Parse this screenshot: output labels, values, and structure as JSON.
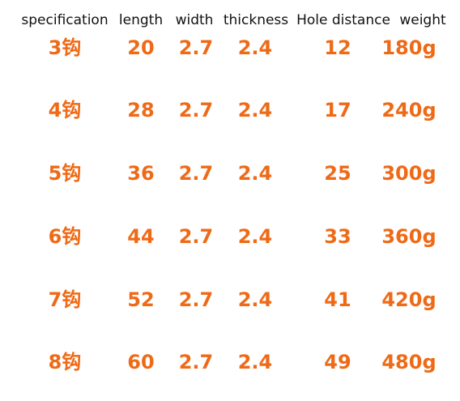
{
  "table": {
    "header": [
      "specification",
      "length",
      "width",
      "thickness",
      "Hole distance",
      "weight"
    ],
    "rows": [
      [
        "3钩",
        "20",
        "2.7",
        "2.4",
        "12",
        "180g"
      ],
      [
        "4钩",
        "28",
        "2.7",
        "2.4",
        "17",
        "240g"
      ],
      [
        "5钩",
        "36",
        "2.7",
        "2.4",
        "25",
        "300g"
      ],
      [
        "6钩",
        "44",
        "2.7",
        "2.4",
        "33",
        "360g"
      ],
      [
        "7钩",
        "52",
        "2.7",
        "2.4",
        "41",
        "420g"
      ],
      [
        "8钩",
        "60",
        "2.7",
        "2.4",
        "49",
        "480g"
      ]
    ]
  }
}
